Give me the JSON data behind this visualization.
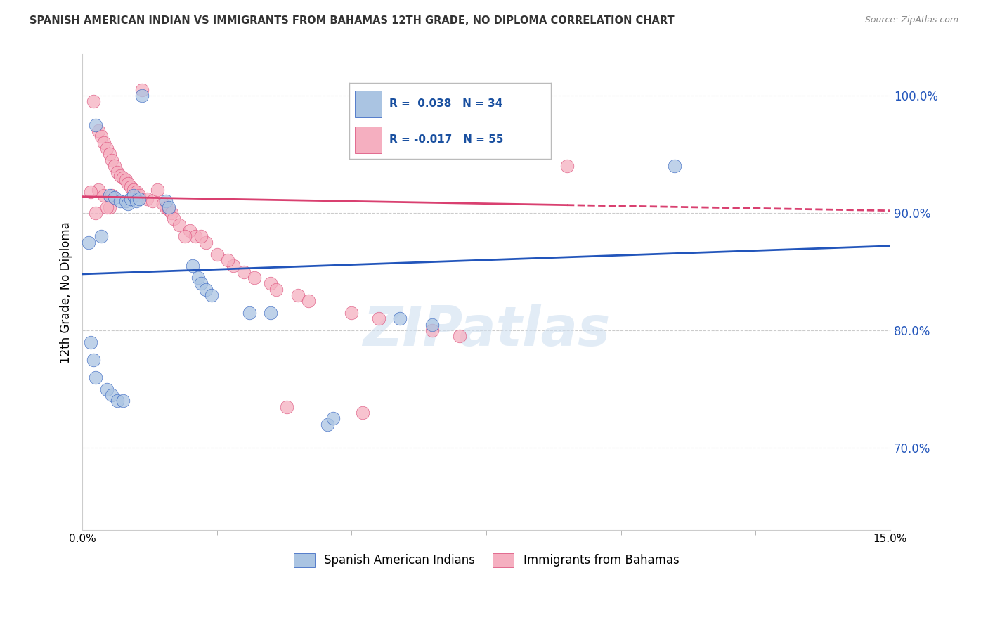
{
  "title": "SPANISH AMERICAN INDIAN VS IMMIGRANTS FROM BAHAMAS 12TH GRADE, NO DIPLOMA CORRELATION CHART",
  "source": "Source: ZipAtlas.com",
  "ylabel": "12th Grade, No Diploma",
  "yticks": [
    70.0,
    80.0,
    90.0,
    100.0
  ],
  "xlim": [
    0.0,
    15.0
  ],
  "ylim": [
    63.0,
    103.5
  ],
  "watermark": "ZIPatlas",
  "blue_color": "#aac4e2",
  "pink_color": "#f5afc0",
  "trend_blue_color": "#2255bb",
  "trend_pink_color": "#d94070",
  "blue_scatter_x": [
    1.1,
    0.25,
    0.5,
    0.6,
    0.7,
    0.8,
    0.85,
    0.9,
    0.95,
    1.0,
    1.05,
    1.55,
    1.6,
    2.05,
    2.15,
    2.2,
    2.3,
    2.4,
    3.5,
    0.15,
    0.2,
    0.25,
    0.45,
    0.55,
    0.65,
    0.75,
    3.1,
    4.55,
    4.65,
    6.5,
    11.0,
    0.12,
    5.9,
    0.35
  ],
  "blue_scatter_y": [
    100.0,
    97.5,
    91.5,
    91.3,
    91.0,
    91.0,
    90.8,
    91.2,
    91.5,
    91.0,
    91.2,
    91.0,
    90.5,
    85.5,
    84.5,
    84.0,
    83.5,
    83.0,
    81.5,
    79.0,
    77.5,
    76.0,
    75.0,
    74.5,
    74.0,
    74.0,
    81.5,
    72.0,
    72.5,
    80.5,
    94.0,
    87.5,
    81.0,
    88.0
  ],
  "pink_scatter_x": [
    1.1,
    0.2,
    0.3,
    0.35,
    0.4,
    0.45,
    0.5,
    0.55,
    0.6,
    0.65,
    0.7,
    0.75,
    0.8,
    0.85,
    0.9,
    0.95,
    1.0,
    1.05,
    1.2,
    1.3,
    1.5,
    1.55,
    1.6,
    1.65,
    1.7,
    1.8,
    2.0,
    2.1,
    2.3,
    2.5,
    2.8,
    3.0,
    3.2,
    3.5,
    3.6,
    4.0,
    4.2,
    5.0,
    5.5,
    6.5,
    7.0,
    2.7,
    0.3,
    0.4,
    0.5,
    1.9,
    2.2,
    3.8,
    5.2,
    1.4,
    0.25,
    0.45,
    0.55,
    0.15,
    9.0
  ],
  "pink_scatter_y": [
    100.5,
    99.5,
    97.0,
    96.5,
    96.0,
    95.5,
    95.0,
    94.5,
    94.0,
    93.5,
    93.2,
    93.0,
    92.8,
    92.5,
    92.2,
    92.0,
    91.8,
    91.5,
    91.2,
    91.0,
    90.8,
    90.5,
    90.3,
    90.0,
    89.5,
    89.0,
    88.5,
    88.0,
    87.5,
    86.5,
    85.5,
    85.0,
    84.5,
    84.0,
    83.5,
    83.0,
    82.5,
    81.5,
    81.0,
    80.0,
    79.5,
    86.0,
    92.0,
    91.5,
    90.5,
    88.0,
    88.0,
    73.5,
    73.0,
    92.0,
    90.0,
    90.5,
    91.5,
    91.8,
    94.0
  ],
  "blue_trend_x0": 0.0,
  "blue_trend_y0": 84.8,
  "blue_trend_x1": 15.0,
  "blue_trend_y1": 87.2,
  "pink_trend_x0": 0.0,
  "pink_trend_y0": 91.4,
  "pink_trend_x1": 15.0,
  "pink_trend_y1": 90.2,
  "pink_solid_end": 9.0,
  "background_color": "#ffffff",
  "grid_color": "#cccccc"
}
